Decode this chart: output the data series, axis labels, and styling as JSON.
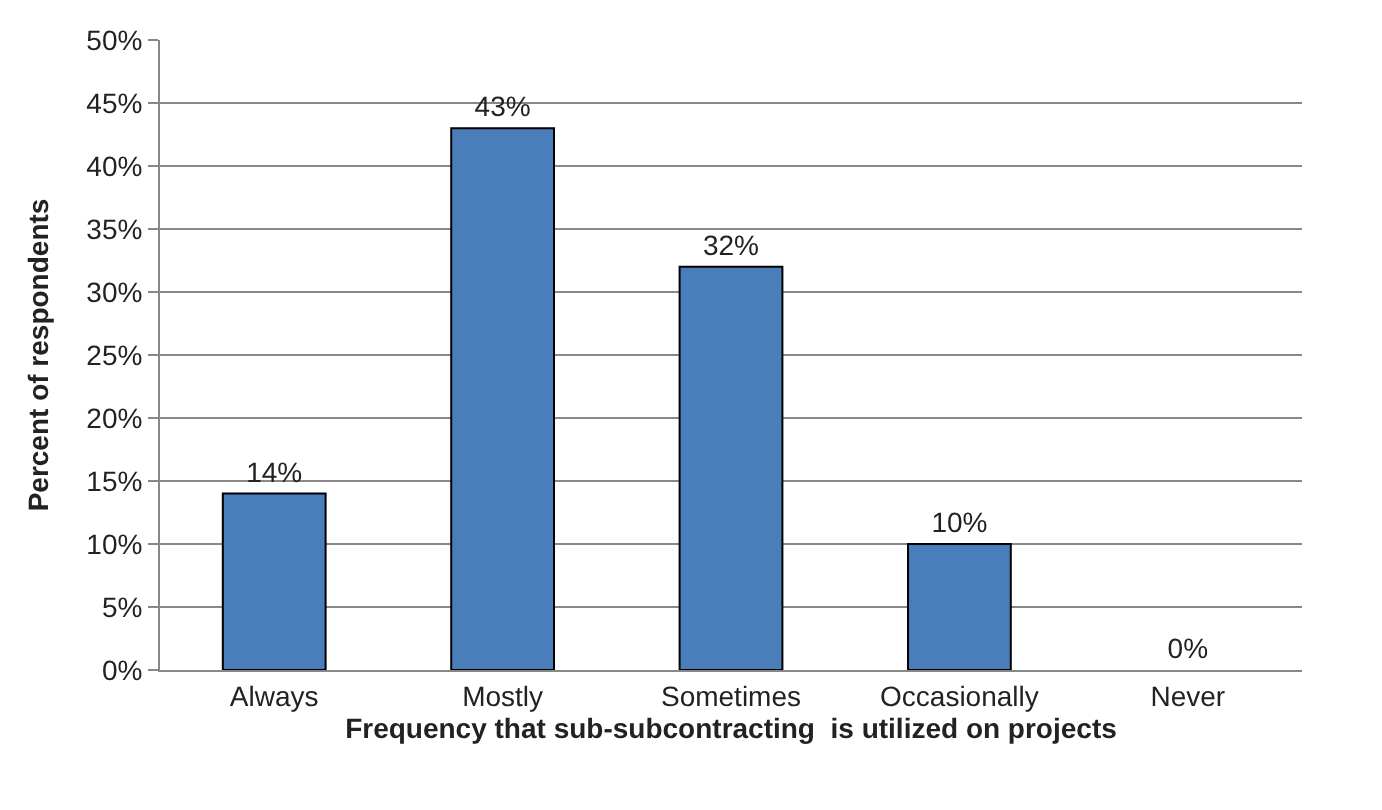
{
  "chart_data": {
    "type": "bar",
    "xlabel": "Frequency that sub-subcontracting  is utilized on projects",
    "ylabel": "Percent of respondents",
    "categories": [
      "Always",
      "Mostly",
      "Sometimes",
      "Occasionally",
      "Never"
    ],
    "values": [
      14,
      43,
      32,
      10,
      0
    ],
    "value_labels": [
      "14%",
      "43%",
      "32%",
      "10%",
      "0%"
    ],
    "color": "#4a7ebb",
    "ylim": [
      0,
      50
    ],
    "yticks": [
      {
        "value": 0,
        "label": "0%"
      },
      {
        "value": 5,
        "label": "5%"
      },
      {
        "value": 10,
        "label": "10%"
      },
      {
        "value": 15,
        "label": "15%"
      },
      {
        "value": 20,
        "label": "20%"
      },
      {
        "value": 25,
        "label": "25%"
      },
      {
        "value": 30,
        "label": "30%"
      },
      {
        "value": 35,
        "label": "35%"
      },
      {
        "value": 40,
        "label": "40%"
      },
      {
        "value": 45,
        "label": "45%"
      },
      {
        "value": 50,
        "label": "50%"
      }
    ],
    "grid": "y"
  }
}
